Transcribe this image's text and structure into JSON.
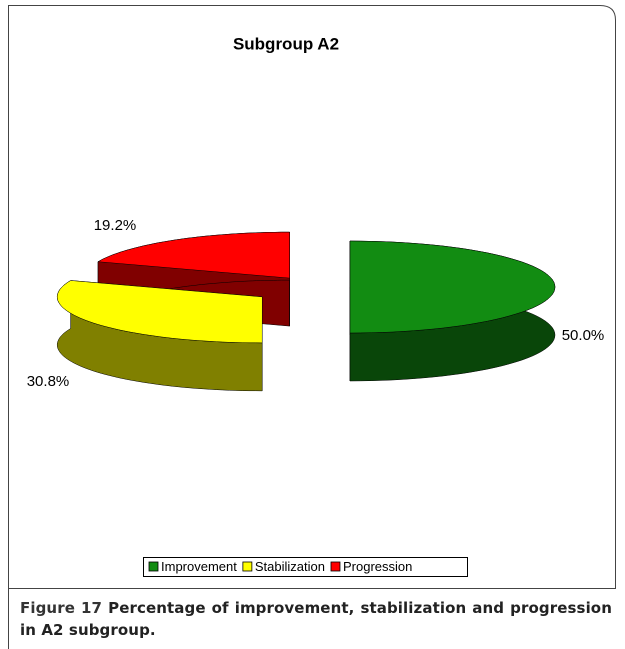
{
  "chart_data": {
    "type": "pie3d",
    "title": "Subgroup A2",
    "categories": [
      "Improvement",
      "Stabilization",
      "Progression"
    ],
    "values": [
      50.0,
      30.8,
      19.2
    ],
    "value_labels": [
      "50.0%",
      "30.8%",
      "19.2%"
    ],
    "colors": [
      "#128c12",
      "#ffff00",
      "#ff0000"
    ],
    "legend": "bottom"
  },
  "caption": {
    "label": "Figure 17",
    "text": "Percentage of improvement, stabilization and progression in A2 subgroup."
  }
}
